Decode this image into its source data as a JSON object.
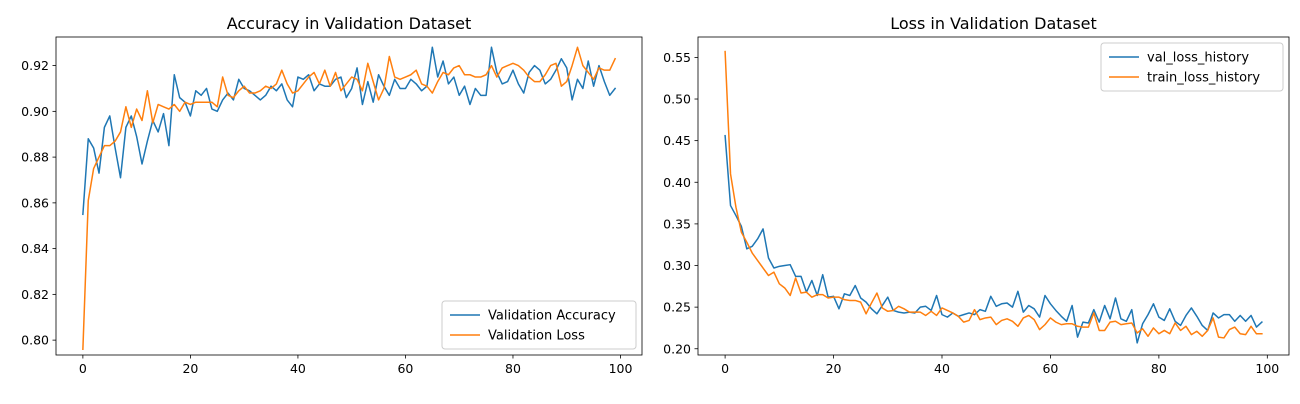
{
  "chart_data": [
    {
      "type": "line",
      "title": "Accuracy in Validation Dataset",
      "xlabel": "",
      "ylabel": "",
      "xlim": [
        -5,
        104
      ],
      "ylim": [
        0.7935,
        0.9325
      ],
      "xticks": [
        0,
        20,
        40,
        60,
        80,
        100
      ],
      "yticks": [
        0.8,
        0.82,
        0.84,
        0.86,
        0.88,
        0.9,
        0.92
      ],
      "ytick_labels": [
        "0.80",
        "0.82",
        "0.84",
        "0.86",
        "0.88",
        "0.90",
        "0.92"
      ],
      "grid": false,
      "legend_position": "lower-right",
      "series": [
        {
          "name": "Validation Accuracy",
          "color": "#1f77b4",
          "x_start": 0,
          "values": [
            0.855,
            0.888,
            0.884,
            0.873,
            0.893,
            0.898,
            0.884,
            0.871,
            0.893,
            0.898,
            0.889,
            0.877,
            0.887,
            0.896,
            0.891,
            0.899,
            0.885,
            0.916,
            0.906,
            0.904,
            0.898,
            0.909,
            0.907,
            0.91,
            0.901,
            0.9,
            0.905,
            0.908,
            0.905,
            0.914,
            0.91,
            0.909,
            0.907,
            0.905,
            0.907,
            0.911,
            0.909,
            0.912,
            0.905,
            0.902,
            0.915,
            0.914,
            0.916,
            0.909,
            0.912,
            0.911,
            0.911,
            0.914,
            0.915,
            0.906,
            0.91,
            0.919,
            0.903,
            0.913,
            0.904,
            0.916,
            0.911,
            0.907,
            0.914,
            0.91,
            0.91,
            0.914,
            0.912,
            0.909,
            0.911,
            0.928,
            0.915,
            0.922,
            0.912,
            0.915,
            0.907,
            0.911,
            0.903,
            0.91,
            0.907,
            0.907,
            0.928,
            0.917,
            0.912,
            0.913,
            0.918,
            0.912,
            0.908,
            0.917,
            0.92,
            0.918,
            0.912,
            0.914,
            0.918,
            0.923,
            0.919,
            0.905,
            0.914,
            0.91,
            0.922,
            0.911,
            0.92,
            0.913,
            0.907,
            0.91
          ]
        },
        {
          "name": "Validation Loss",
          "color": "#ff7f0e",
          "x_start": 0,
          "values": [
            0.796,
            0.861,
            0.875,
            0.88,
            0.885,
            0.885,
            0.887,
            0.891,
            0.902,
            0.893,
            0.901,
            0.896,
            0.909,
            0.895,
            0.903,
            0.902,
            0.901,
            0.903,
            0.9,
            0.904,
            0.903,
            0.904,
            0.904,
            0.904,
            0.904,
            0.902,
            0.915,
            0.907,
            0.906,
            0.909,
            0.911,
            0.908,
            0.908,
            0.909,
            0.911,
            0.91,
            0.912,
            0.918,
            0.912,
            0.908,
            0.909,
            0.912,
            0.915,
            0.917,
            0.912,
            0.918,
            0.911,
            0.917,
            0.909,
            0.912,
            0.915,
            0.914,
            0.909,
            0.921,
            0.913,
            0.905,
            0.91,
            0.924,
            0.915,
            0.914,
            0.915,
            0.916,
            0.918,
            0.912,
            0.911,
            0.908,
            0.913,
            0.917,
            0.916,
            0.919,
            0.92,
            0.916,
            0.916,
            0.915,
            0.915,
            0.916,
            0.92,
            0.915,
            0.919,
            0.92,
            0.921,
            0.92,
            0.918,
            0.915,
            0.913,
            0.913,
            0.916,
            0.92,
            0.921,
            0.911,
            0.913,
            0.92,
            0.928,
            0.92,
            0.917,
            0.914,
            0.919,
            0.918,
            0.918,
            0.923
          ]
        }
      ]
    },
    {
      "type": "line",
      "title": "Loss in Validation Dataset",
      "xlabel": "",
      "ylabel": "",
      "xlim": [
        -5,
        104
      ],
      "ylim": [
        0.1925,
        0.5745
      ],
      "xticks": [
        0,
        20,
        40,
        60,
        80,
        100
      ],
      "yticks": [
        0.2,
        0.25,
        0.3,
        0.35,
        0.4,
        0.45,
        0.5,
        0.55
      ],
      "ytick_labels": [
        "0.20",
        "0.25",
        "0.30",
        "0.35",
        "0.40",
        "0.45",
        "0.50",
        "0.55"
      ],
      "grid": false,
      "legend_position": "upper-right",
      "series": [
        {
          "name": "val_loss_history",
          "color": "#1f77b4",
          "x_start": 0,
          "values": [
            0.456,
            0.372,
            0.36,
            0.347,
            0.32,
            0.323,
            0.332,
            0.344,
            0.309,
            0.297,
            0.299,
            0.3,
            0.301,
            0.287,
            0.287,
            0.268,
            0.282,
            0.264,
            0.289,
            0.262,
            0.263,
            0.248,
            0.266,
            0.264,
            0.276,
            0.261,
            0.256,
            0.248,
            0.242,
            0.252,
            0.262,
            0.246,
            0.244,
            0.243,
            0.244,
            0.243,
            0.25,
            0.251,
            0.246,
            0.264,
            0.241,
            0.238,
            0.243,
            0.239,
            0.241,
            0.243,
            0.241,
            0.247,
            0.245,
            0.263,
            0.251,
            0.254,
            0.255,
            0.25,
            0.269,
            0.244,
            0.252,
            0.248,
            0.238,
            0.264,
            0.254,
            0.246,
            0.239,
            0.233,
            0.252,
            0.214,
            0.232,
            0.231,
            0.247,
            0.232,
            0.252,
            0.236,
            0.261,
            0.236,
            0.233,
            0.247,
            0.207,
            0.23,
            0.241,
            0.254,
            0.238,
            0.234,
            0.248,
            0.233,
            0.228,
            0.24,
            0.249,
            0.239,
            0.228,
            0.222,
            0.243,
            0.237,
            0.241,
            0.241,
            0.233,
            0.24,
            0.233,
            0.24,
            0.226,
            0.232
          ]
        },
        {
          "name": "train_loss_history",
          "color": "#ff7f0e",
          "x_start": 0,
          "values": [
            0.557,
            0.41,
            0.37,
            0.34,
            0.328,
            0.315,
            0.306,
            0.297,
            0.288,
            0.292,
            0.278,
            0.273,
            0.264,
            0.285,
            0.267,
            0.268,
            0.262,
            0.265,
            0.265,
            0.261,
            0.262,
            0.262,
            0.259,
            0.258,
            0.258,
            0.256,
            0.242,
            0.255,
            0.267,
            0.249,
            0.245,
            0.246,
            0.251,
            0.248,
            0.244,
            0.244,
            0.244,
            0.24,
            0.245,
            0.24,
            0.249,
            0.246,
            0.243,
            0.239,
            0.232,
            0.234,
            0.247,
            0.235,
            0.237,
            0.238,
            0.229,
            0.234,
            0.236,
            0.233,
            0.227,
            0.237,
            0.24,
            0.235,
            0.223,
            0.229,
            0.237,
            0.232,
            0.229,
            0.23,
            0.23,
            0.227,
            0.226,
            0.226,
            0.243,
            0.222,
            0.222,
            0.232,
            0.233,
            0.229,
            0.23,
            0.231,
            0.219,
            0.224,
            0.215,
            0.225,
            0.218,
            0.222,
            0.218,
            0.231,
            0.222,
            0.227,
            0.217,
            0.221,
            0.215,
            0.222,
            0.237,
            0.214,
            0.213,
            0.223,
            0.226,
            0.218,
            0.217,
            0.227,
            0.218,
            0.218
          ]
        }
      ]
    }
  ]
}
